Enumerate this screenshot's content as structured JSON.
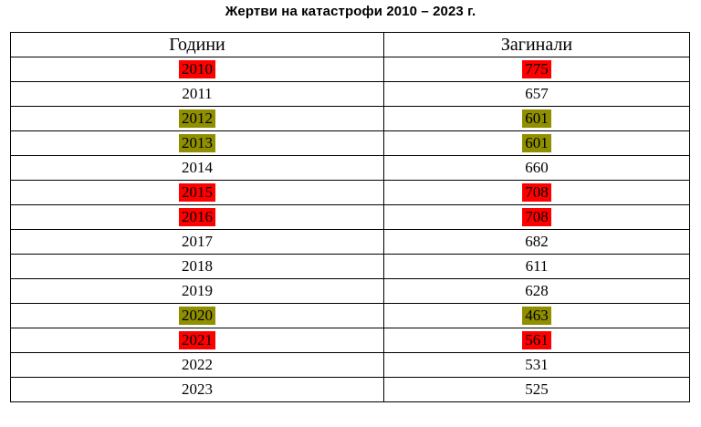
{
  "title": "Жертви на катастрофи 2010 – 2023 г.",
  "table": {
    "headers": [
      "Години",
      "Загинали"
    ],
    "rows": [
      {
        "year": "2010",
        "deaths": "775",
        "highlight": "red"
      },
      {
        "year": "2011",
        "deaths": "657",
        "highlight": "none"
      },
      {
        "year": "2012",
        "deaths": "601",
        "highlight": "olive"
      },
      {
        "year": "2013",
        "deaths": "601",
        "highlight": "olive"
      },
      {
        "year": "2014",
        "deaths": "660",
        "highlight": "none"
      },
      {
        "year": "2015",
        "deaths": "708",
        "highlight": "red"
      },
      {
        "year": "2016",
        "deaths": "708",
        "highlight": "red"
      },
      {
        "year": "2017",
        "deaths": "682",
        "highlight": "none"
      },
      {
        "year": "2018",
        "deaths": "611",
        "highlight": "none"
      },
      {
        "year": "2019",
        "deaths": "628",
        "highlight": "none"
      },
      {
        "year": "2020",
        "deaths": "463",
        "highlight": "olive"
      },
      {
        "year": "2021",
        "deaths": "561",
        "highlight": "red"
      },
      {
        "year": "2022",
        "deaths": "531",
        "highlight": "none"
      },
      {
        "year": "2023",
        "deaths": "525",
        "highlight": "none"
      }
    ]
  },
  "colors": {
    "highlight_red": "#ff0000",
    "highlight_olive": "#8f8f00",
    "border": "#000000",
    "text": "#000000",
    "background": "#ffffff"
  }
}
